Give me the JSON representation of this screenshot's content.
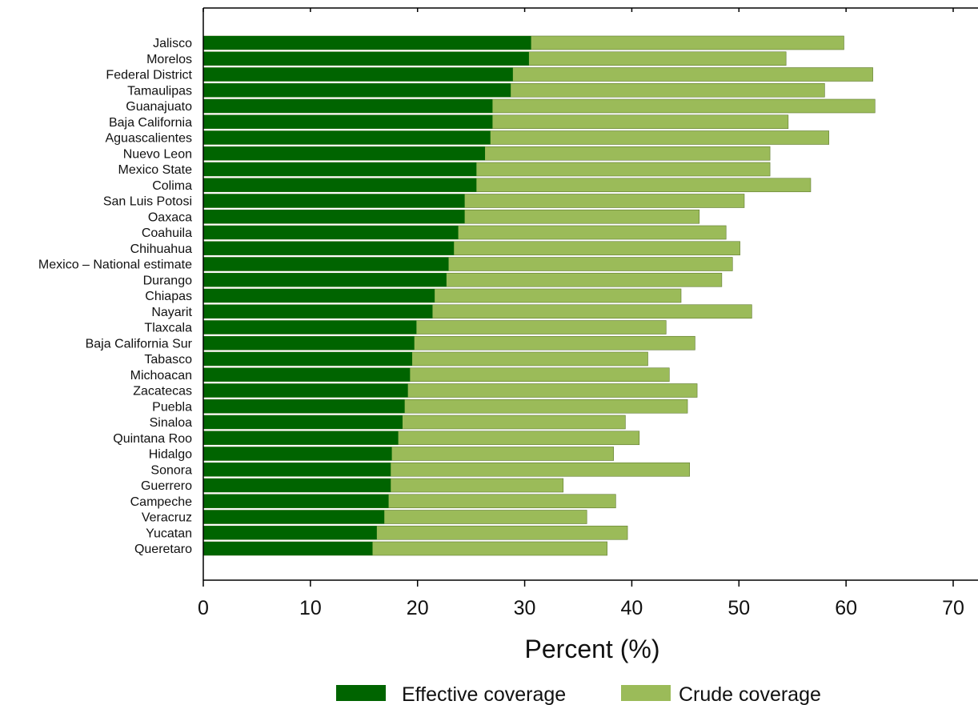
{
  "chart_data": {
    "type": "bar",
    "orientation": "horizontal",
    "stacked": false,
    "overlaid": true,
    "xlabel": "Percent (%)",
    "ylabel": "",
    "xlim": [
      0,
      70
    ],
    "xticks": [
      0,
      10,
      20,
      30,
      40,
      50,
      60,
      70
    ],
    "grid": false,
    "legend_position": "bottom",
    "categories": [
      "Jalisco",
      "Morelos",
      "Federal District",
      "Tamaulipas",
      "Guanajuato",
      "Baja California",
      "Aguascalientes",
      "Nuevo Leon",
      "Mexico State",
      "Colima",
      "San Luis Potosi",
      "Oaxaca",
      "Coahuila",
      "Chihuahua",
      "Mexico – National estimate",
      "Durango",
      "Chiapas",
      "Nayarit",
      "Tlaxcala",
      "Baja California Sur",
      "Tabasco",
      "Michoacan",
      "Zacatecas",
      "Puebla",
      "Sinaloa",
      "Quintana Roo",
      "Hidalgo",
      "Sonora",
      "Guerrero",
      "Campeche",
      "Veracruz",
      "Yucatan",
      "Queretaro"
    ],
    "series": [
      {
        "name": "Effective coverage",
        "color": "#006400",
        "values": [
          30.6,
          30.4,
          28.9,
          28.7,
          27.0,
          27.0,
          26.8,
          26.3,
          25.5,
          25.5,
          24.4,
          24.4,
          23.8,
          23.4,
          22.9,
          22.7,
          21.6,
          21.4,
          19.9,
          19.7,
          19.5,
          19.3,
          19.1,
          18.8,
          18.6,
          18.2,
          17.6,
          17.5,
          17.5,
          17.3,
          16.9,
          16.2,
          15.8
        ]
      },
      {
        "name": "Crude coverage",
        "color": "#9BBB59",
        "values": [
          59.8,
          54.4,
          62.5,
          58.0,
          62.7,
          54.6,
          58.4,
          52.9,
          52.9,
          56.7,
          50.5,
          46.3,
          48.8,
          50.1,
          49.4,
          48.4,
          44.6,
          51.2,
          43.2,
          45.9,
          41.5,
          43.5,
          46.1,
          45.2,
          39.4,
          40.7,
          38.3,
          45.4,
          33.6,
          38.5,
          35.8,
          39.6,
          37.7
        ]
      }
    ]
  }
}
